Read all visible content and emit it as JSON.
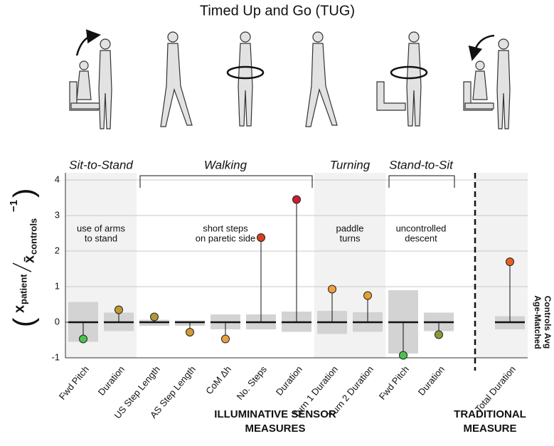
{
  "chart_data": {
    "type": "lollipop",
    "title": "Timed Up and Go (TUG)",
    "categories": [
      "Fwd Pitch",
      "Duration",
      "US Step Length",
      "AS Step Length",
      "CoM Δh",
      "No. Steps",
      "Duration",
      "Turn 1 Duration",
      "Turn 2 Duration",
      "Fwd Pitch",
      "Duration",
      null,
      "Total Duration"
    ],
    "values": [
      -0.47,
      0.35,
      0.15,
      -0.28,
      -0.47,
      2.38,
      3.45,
      0.93,
      0.75,
      -0.93,
      -0.35,
      null,
      1.7
    ],
    "colors": [
      "#4cc24c",
      "#c09a30",
      "#b0983a",
      "#d39a30",
      "#e8a040",
      "#d8401f",
      "#c8202e",
      "#f0a040",
      "#e8a030",
      "#4cc24c",
      "#8a9a3a",
      null,
      "#e86020"
    ],
    "control_low": [
      -0.55,
      -0.25,
      -0.1,
      -0.1,
      -0.2,
      -0.2,
      -0.27,
      -0.33,
      -0.27,
      -0.88,
      -0.25,
      null,
      -0.2
    ],
    "control_high": [
      0.57,
      0.27,
      0.07,
      0.05,
      0.22,
      0.22,
      0.3,
      0.32,
      0.28,
      0.9,
      0.27,
      null,
      0.17
    ],
    "ylim": [
      -1,
      4
    ],
    "yticks": [
      -1,
      0,
      1,
      2,
      3,
      4
    ],
    "grid": true,
    "y_label": {
      "numerator": "x",
      "numerator_sub": "patient",
      "denominator": "x̄",
      "denominator_sub": "controls",
      "minus": "−1"
    },
    "right_label": [
      "Age-Matched",
      "Controls Avg"
    ],
    "phases": [
      {
        "name": "Sit-to-Stand",
        "note": [
          "use of arms",
          "to stand"
        ],
        "first": 0,
        "last": 1,
        "shaded": true
      },
      {
        "name": "Walking",
        "note": [
          "short steps",
          "on paretic side"
        ],
        "first": 2,
        "last": 6,
        "shaded": false
      },
      {
        "name": "Turning",
        "note": [
          "paddle",
          "turns"
        ],
        "first": 7,
        "last": 8,
        "shaded": true
      },
      {
        "name": "Stand-to-Sit",
        "note": [
          "uncontrolled",
          "descent"
        ],
        "first": 9,
        "last": 10,
        "shaded": false
      }
    ],
    "groups": [
      {
        "lines": [
          "ILLUMINATIVE SENSOR",
          "MEASURES"
        ],
        "first": 0,
        "last": 10,
        "shaded": false
      },
      {
        "lines": [
          "TRADITIONAL",
          "MEASURE"
        ],
        "first": 12,
        "last": 12,
        "shaded": true
      }
    ]
  }
}
